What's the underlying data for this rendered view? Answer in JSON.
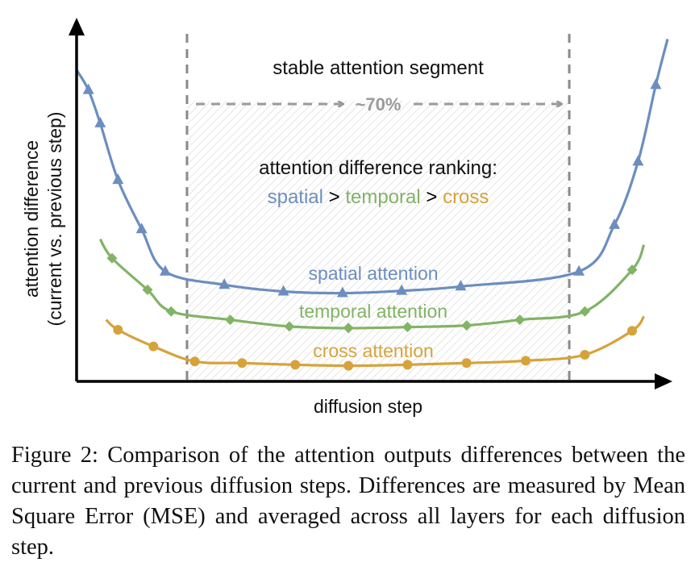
{
  "chart_data": {
    "type": "line",
    "xlabel": "diffusion step",
    "ylabel": [
      "attention difference",
      "(current vs. previous step)"
    ],
    "grid": false,
    "stable_segment": {
      "label": "stable attention segment",
      "span_label": "~70%",
      "x_range": [
        0.15,
        0.85
      ]
    },
    "ranking": {
      "title": "attention difference ranking:",
      "items": [
        {
          "text": "spatial",
          "color": "#6c8ebf"
        },
        {
          "text": " > ",
          "color": "#000000"
        },
        {
          "text": "temporal",
          "color": "#82b366"
        },
        {
          "text": " > ",
          "color": "#000000"
        },
        {
          "text": "cross",
          "color": "#d6a33b"
        }
      ]
    },
    "xlim": [
      0,
      1
    ],
    "ylim": [
      0,
      1
    ],
    "series": [
      {
        "name": "spatial attention",
        "color": "#6c8ebf",
        "marker": "triangle",
        "x": [
          0.02,
          0.04,
          0.07,
          0.11,
          0.15,
          0.25,
          0.35,
          0.45,
          0.55,
          0.65,
          0.85,
          0.91,
          0.95,
          0.98
        ],
        "y": [
          0.875,
          0.775,
          0.605,
          0.457,
          0.33,
          0.29,
          0.27,
          0.265,
          0.272,
          0.285,
          0.33,
          0.47,
          0.66,
          0.89
        ]
      },
      {
        "name": "temporal attention",
        "color": "#82b366",
        "marker": "diamond",
        "x": [
          0.06,
          0.12,
          0.16,
          0.26,
          0.36,
          0.46,
          0.56,
          0.66,
          0.75,
          0.86,
          0.94
        ],
        "y": [
          0.37,
          0.275,
          0.21,
          0.185,
          0.165,
          0.16,
          0.163,
          0.168,
          0.185,
          0.21,
          0.335
        ]
      },
      {
        "name": "cross attention",
        "color": "#d6a33b",
        "marker": "circle",
        "x": [
          0.07,
          0.13,
          0.2,
          0.28,
          0.37,
          0.46,
          0.56,
          0.66,
          0.76,
          0.86,
          0.94
        ],
        "y": [
          0.155,
          0.105,
          0.06,
          0.055,
          0.05,
          0.047,
          0.05,
          0.055,
          0.062,
          0.08,
          0.152
        ]
      }
    ]
  },
  "caption": "Figure 2: Comparison of the attention outputs differences between the current and previous diffusion steps. Differences are measured by Mean Square Error (MSE) and averaged across all layers for each diffusion step."
}
